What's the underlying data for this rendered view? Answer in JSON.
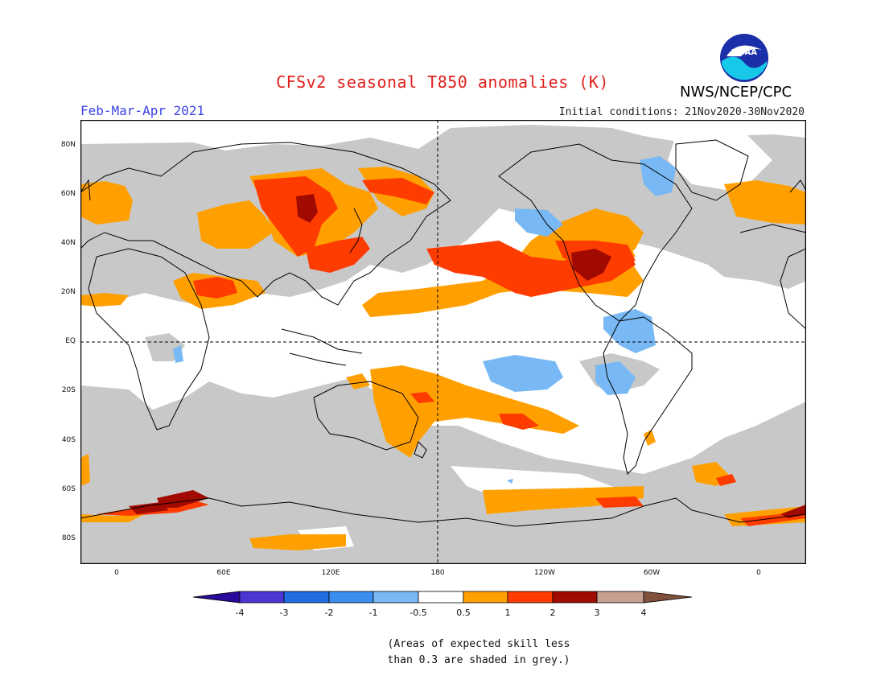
{
  "header": {
    "title": "CFSv2 seasonal T850 anomalies (K)",
    "period": "Feb-Mar-Apr 2021",
    "initial_conditions": "Initial conditions: 21Nov2020-30Nov2020",
    "agency": "NWS/NCEP/CPC",
    "logo_text": "NOAA"
  },
  "map": {
    "lat_labels": [
      "80N",
      "60N",
      "40N",
      "20N",
      "EQ",
      "20S",
      "40S",
      "60S",
      "80S"
    ],
    "lon_labels": [
      "0",
      "60E",
      "120E",
      "180",
      "120W",
      "60W",
      "0"
    ],
    "colors": {
      "grey_skill_mask": "#c8c8c8",
      "ocean_land_base": "#ffffff",
      "coast": "#000000"
    }
  },
  "colorbar": {
    "labels": [
      "-4",
      "-3",
      "-2",
      "-1",
      "-0.5",
      "0.5",
      "1",
      "2",
      "3",
      "4"
    ],
    "colors": [
      "#2a0a9a",
      "#4a36d2",
      "#1f6de0",
      "#3b8ef0",
      "#78b8f4",
      "#ffffff",
      "#ffa000",
      "#ff3c00",
      "#a00a00",
      "#c8a090",
      "#80503c"
    ]
  },
  "note": {
    "line1": "(Areas of expected skill less",
    "line2": "than 0.3 are shaded in grey.)"
  }
}
